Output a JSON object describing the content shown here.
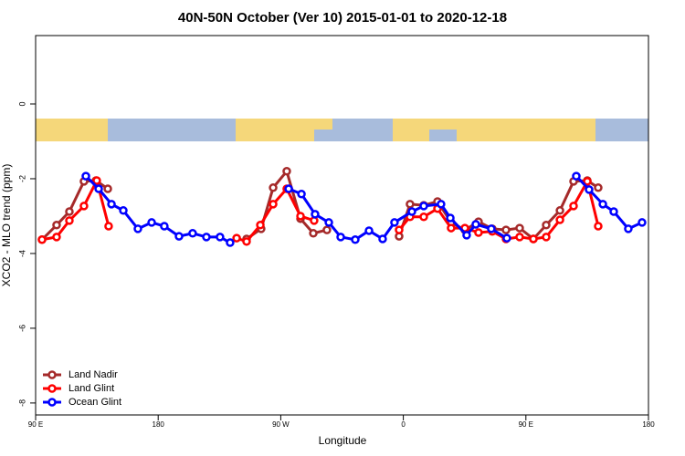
{
  "chart_data": {
    "type": "line",
    "title": "40N-50N October (Ver 10)   2015-01-01 to 2020-12-18",
    "x_label": "Longitude",
    "y_label": "XCO2 - MLO trend (ppm)",
    "xlim": [
      90,
      540
    ],
    "xticks": [
      {
        "value": 90,
        "label": "90 E"
      },
      180,
      {
        "value": 270,
        "label": "90 W"
      },
      {
        "value": 360,
        "label": "0"
      },
      {
        "value": 450,
        "label": "90 E"
      },
      {
        "value": 540,
        "label": "180"
      }
    ],
    "ylim": [
      -8.32,
      1.83
    ],
    "yticks": [
      0,
      -2,
      -4,
      -6,
      -8
    ],
    "legend": "lower left",
    "series": [
      {
        "name": "Land Nadir",
        "color": "#a52a2a",
        "x": [
          94.7,
          105.4,
          114.8,
          125.5,
          134.3,
          143.0,
          null,
          244.9,
          255.6,
          264.4,
          274.4,
          284.5,
          293.9,
          303.9,
          null,
          356.9,
          364.9,
          375.0,
          385.1,
          395.1,
          405.2,
          415.2,
          425.3,
          435.4,
          445.4,
          455.5,
          464.9,
          475.0,
          485.0,
          495.1,
          503.1
        ],
        "values": [
          -3.63,
          -3.24,
          -2.88,
          -2.07,
          -2.05,
          -2.27,
          null,
          -3.61,
          -3.34,
          -2.24,
          -1.8,
          -3.07,
          -3.46,
          -3.37,
          null,
          -3.54,
          -2.68,
          -2.71,
          -2.61,
          -3.17,
          -3.37,
          -3.15,
          -3.34,
          -3.37,
          -3.32,
          -3.61,
          -3.24,
          -2.85,
          -2.07,
          -2.05,
          -2.24
        ]
      },
      {
        "name": "Land Glint",
        "color": "#ff0000",
        "x": [
          94.7,
          105.4,
          114.8,
          125.5,
          134.9,
          143.6,
          null,
          237.6,
          244.9,
          255.0,
          264.4,
          274.4,
          284.5,
          294.5,
          null,
          356.9,
          364.9,
          375.0,
          385.1,
          395.1,
          405.2,
          415.2,
          425.3,
          435.4,
          445.4,
          455.5,
          464.9,
          475.0,
          485.0,
          495.1,
          503.1
        ],
        "values": [
          -3.63,
          -3.56,
          -3.12,
          -2.73,
          -2.05,
          -3.27,
          null,
          -3.59,
          -3.68,
          -3.24,
          -2.68,
          -2.27,
          -3.0,
          -3.12,
          null,
          -3.37,
          -3.02,
          -3.02,
          -2.8,
          -3.32,
          -3.32,
          -3.44,
          -3.41,
          -3.61,
          -3.56,
          -3.61,
          -3.56,
          -3.1,
          -2.73,
          -2.07,
          -3.27
        ]
      },
      {
        "name": "Ocean Glint",
        "color": "#0000ff",
        "x": [
          126.9,
          136.3,
          145.7,
          154.4,
          165.1,
          175.2,
          184.5,
          195.3,
          205.3,
          215.4,
          225.4,
          232.8,
          null,
          275.8,
          285.2,
          295.2,
          305.3,
          314.0,
          324.7,
          334.8,
          344.8,
          353.5,
          366.3,
          375.0,
          387.7,
          394.5,
          406.5,
          413.2,
          424.6,
          436.0,
          null,
          487.0,
          496.4,
          506.5,
          514.5,
          525.2,
          535.3
        ],
        "values": [
          -1.93,
          -2.27,
          -2.68,
          -2.85,
          -3.34,
          -3.17,
          -3.27,
          -3.54,
          -3.46,
          -3.56,
          -3.56,
          -3.71,
          null,
          -2.27,
          -2.41,
          -2.95,
          -3.17,
          -3.56,
          -3.63,
          -3.39,
          -3.61,
          -3.17,
          -2.88,
          -2.73,
          -2.68,
          -3.05,
          -3.51,
          -3.22,
          -3.34,
          -3.59,
          null,
          -1.93,
          -2.29,
          -2.68,
          -2.88,
          -3.34,
          -3.17
        ]
      }
    ]
  }
}
